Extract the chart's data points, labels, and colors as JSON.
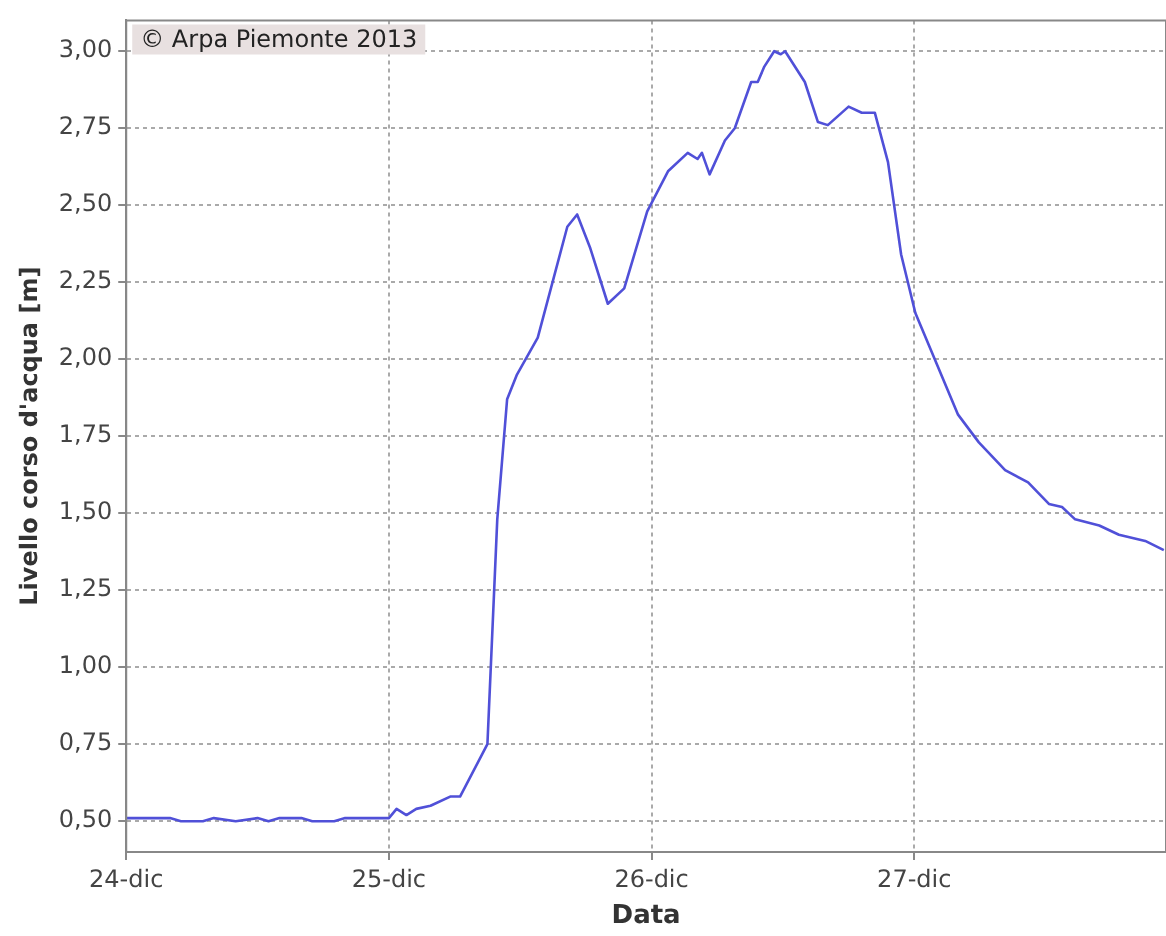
{
  "chart_data": {
    "type": "line",
    "xlabel": "Data",
    "ylabel": "Livello corso d'acqua [m]",
    "annotations": [
      "© Arpa Piemonte 2013"
    ],
    "x": [
      "--12-24T00:00",
      "--12-24T04:00",
      "--12-24T05:00",
      "--12-24T07:00",
      "--12-24T08:00",
      "--12-24T10:00",
      "--12-24T12:00",
      "--12-24T13:00",
      "--12-24T14:00",
      "--12-24T16:00",
      "--12-24T17:00",
      "--12-24T19:00",
      "--12-24T20:00",
      "--12-25T00:00",
      "--12-25T00:42",
      "--12-25T01:36",
      "--12-25T02:30",
      "--12-25T03:48",
      "--12-25T05:36",
      "--12-25T06:30",
      "--12-25T09:00",
      "--12-25T09:54",
      "--12-25T10:48",
      "--12-25T11:42",
      "--12-25T13:36",
      "--12-25T16:18",
      "--12-25T17:12",
      "--12-25T18:24",
      "--12-25T20:00",
      "--12-25T21:30",
      "--12-25T23:36",
      "--12-26T01:30",
      "--12-26T03:18",
      "--12-26T04:12",
      "--12-26T04:36",
      "--12-26T05:18",
      "--12-26T06:42",
      "--12-26T07:36",
      "--12-26T09:06",
      "--12-26T09:42",
      "--12-26T10:18",
      "--12-26T11:12",
      "--12-26T11:48",
      "--12-26T12:12",
      "--12-26T14:00",
      "--12-26T15:12",
      "--12-26T16:06",
      "--12-26T18:00",
      "--12-26T19:12",
      "--12-26T20:24",
      "--12-26T21:36",
      "--12-26T22:48",
      "--12-27T00:06",
      "--12-27T04:00",
      "--12-27T05:54",
      "--12-27T08:18",
      "--12-27T10:24",
      "--12-27T12:18",
      "--12-27T13:30",
      "--12-27T14:42",
      "--12-27T16:54",
      "--12-27T18:42",
      "--12-27T21:06",
      "--12-27T22:48"
    ],
    "series": [
      {
        "color": "#5050d8",
        "values": [
          0.51,
          0.51,
          0.5,
          0.5,
          0.51,
          0.5,
          0.51,
          0.5,
          0.51,
          0.51,
          0.5,
          0.5,
          0.51,
          0.51,
          0.54,
          0.52,
          0.54,
          0.55,
          0.58,
          0.58,
          0.75,
          1.48,
          1.87,
          1.95,
          2.07,
          2.43,
          2.47,
          2.36,
          2.18,
          2.23,
          2.48,
          2.61,
          2.67,
          2.65,
          2.67,
          2.6,
          2.71,
          2.75,
          2.9,
          2.9,
          2.95,
          3.0,
          2.99,
          3.0,
          2.9,
          2.77,
          2.76,
          2.82,
          2.8,
          2.8,
          2.64,
          2.34,
          2.15,
          1.82,
          1.73,
          1.64,
          1.6,
          1.53,
          1.52,
          1.48,
          1.46,
          1.43,
          1.41,
          1.38
        ]
      }
    ],
    "xlim": [
      "--12-24T00:00",
      "--12-27T23:00"
    ],
    "xticks": [
      {
        "value": "--12-24",
        "label": "24-dic"
      },
      {
        "value": "--12-25",
        "label": "25-dic"
      },
      {
        "value": "--12-26",
        "label": "26-dic"
      },
      {
        "value": "--12-27",
        "label": "27-dic"
      }
    ],
    "ylim": [
      0.4,
      3.1
    ],
    "yticks": [
      {
        "value": 0.5,
        "label": "0,50"
      },
      {
        "value": 0.75,
        "label": "0,75"
      },
      {
        "value": 1,
        "label": "1,00"
      },
      {
        "value": 1.25,
        "label": "1,25"
      },
      {
        "value": 1.5,
        "label": "1,50"
      },
      {
        "value": 1.75,
        "label": "1,75"
      },
      {
        "value": 2,
        "label": "2,00"
      },
      {
        "value": 2.25,
        "label": "2,25"
      },
      {
        "value": 2.5,
        "label": "2,50"
      },
      {
        "value": 2.75,
        "label": "2,75"
      },
      {
        "value": 3,
        "label": "3,00"
      }
    ],
    "grid": true,
    "marker": "none",
    "line_style": "solid"
  }
}
